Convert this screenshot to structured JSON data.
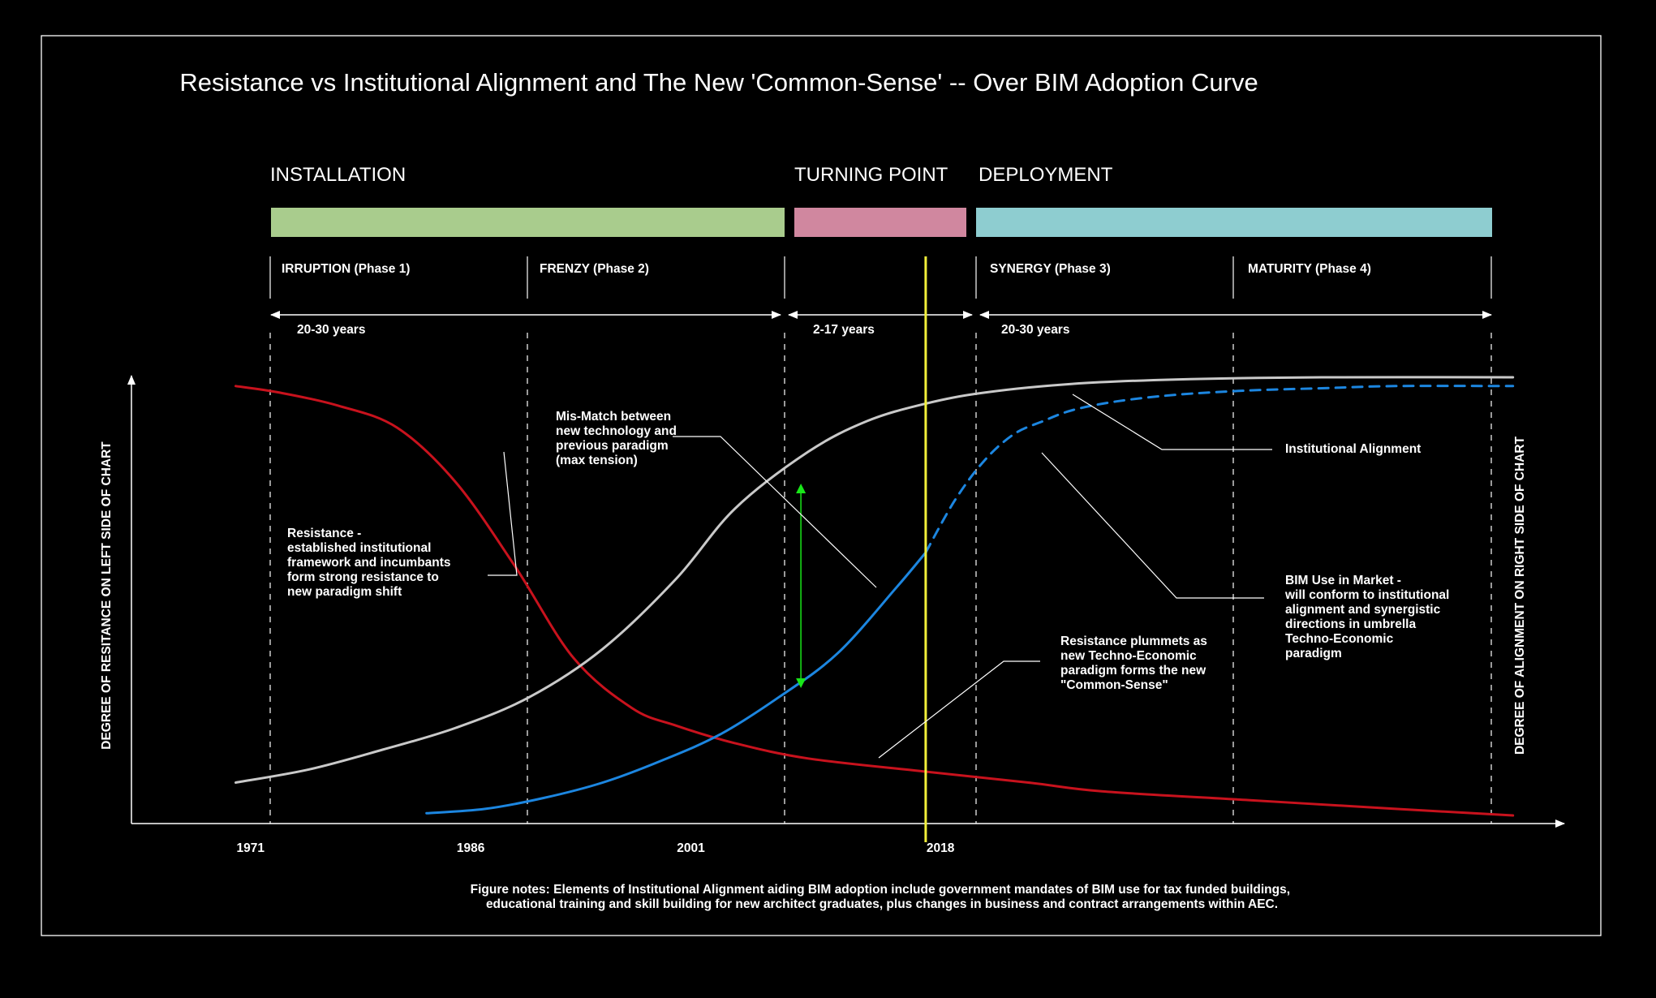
{
  "title": "Resistance vs Institutional Alignment and The New 'Common-Sense'  -- Over BIM Adoption Curve",
  "stages": [
    {
      "label": "INSTALLATION",
      "color": "#a9cc8d"
    },
    {
      "label": "TURNING POINT",
      "color": "#d0879f"
    },
    {
      "label": "DEPLOYMENT",
      "color": "#8ecdd0"
    }
  ],
  "phases": [
    "IRRUPTION (Phase 1)",
    "FRENZY (Phase 2)",
    "SYNERGY (Phase 3)",
    "MATURITY (Phase 4)"
  ],
  "durations": [
    "20-30 years",
    "2-17 years",
    "20-30 years"
  ],
  "y_axis_left": "DEGREE OF RESITANCE ON LEFT SIDE OF CHART",
  "y_axis_right": "DEGREE OF ALIGNMENT ON RIGHT SIDE OF CHART",
  "annotations": {
    "resistance": [
      "Resistance -",
      "established institutional",
      "framework and incumbants",
      "form strong resistance to",
      "new paradigm shift"
    ],
    "mismatch": [
      "Mis-Match between",
      "new technology and",
      "previous paradigm",
      "(max tension)"
    ],
    "institutional": [
      "Institutional Alignment"
    ],
    "bim_use": [
      "BIM Use in Market -",
      "will conform to institutional",
      "alignment and synergistic",
      "directions in umbrella",
      "Techno-Economic",
      "paradigm"
    ],
    "plummets": [
      "Resistance plummets as",
      "new Techno-Economic",
      "paradigm forms the new",
      "\"Common-Sense\""
    ]
  },
  "figure_notes": [
    "Figure notes:  Elements of Institutional Alignment aiding BIM adoption include government mandates of BIM use for tax funded buildings,",
    "educational training and skill building for new architect graduates, plus changes in business and contract arrangements within AEC."
  ],
  "chart_data": {
    "type": "line",
    "title": "Resistance vs Institutional Alignment and The New 'Common-Sense'  -- Over BIM Adoption Curve",
    "xlabel": "",
    "ylabel": "DEGREE OF RESITANCE ON LEFT SIDE OF CHART",
    "ylabel_right": "DEGREE OF ALIGNMENT ON RIGHT SIDE OF CHART",
    "x_ticks": [
      "1971",
      "1986",
      "2001",
      "2018"
    ],
    "x_tick_years": [
      1971,
      1986,
      2001,
      2018
    ],
    "xlim": [
      1963.9,
      2061.5
    ],
    "ylim": [
      0,
      100
    ],
    "grid": false,
    "highlight_year": 2018,
    "highlight_color": "#f2f03a",
    "series": [
      {
        "name": "Resistance",
        "color": "#c8121d",
        "style": "solid",
        "x": [
          1971,
          1974,
          1978,
          1982,
          1986,
          1990,
          1994,
          1998,
          2001,
          2005,
          2010,
          2018,
          2025,
          2030,
          2040,
          2050,
          2058
        ],
        "y": [
          98,
          96.5,
          93.5,
          88.5,
          76,
          57,
          36,
          24.5,
          20.5,
          16.5,
          13,
          10,
          7.5,
          5.5,
          3.5,
          1.5,
          0
        ]
      },
      {
        "name": "Institutional Alignment",
        "color": "#c9c9c9",
        "style": "solid",
        "x": [
          1971,
          1976,
          1981,
          1986,
          1991,
          1996,
          2001,
          2005,
          2010,
          2014,
          2018,
          2022,
          2028,
          2035,
          2045,
          2058
        ],
        "y": [
          7.5,
          10.5,
          15,
          20,
          27,
          38,
          54,
          70,
          83,
          90,
          94,
          96.5,
          98.5,
          99.5,
          100,
          100
        ]
      },
      {
        "name": "BIM Use in Market",
        "color": "#1c86e0",
        "style": "solid",
        "x": [
          1984,
          1988,
          1992,
          1996,
          2000,
          2004,
          2008,
          2012,
          2016,
          2018
        ],
        "y": [
          0.5,
          1.5,
          4,
          7.5,
          12.5,
          18.5,
          27,
          37,
          52,
          60
        ]
      },
      {
        "name": "BIM Use in Market (projected)",
        "color": "#1c86e0",
        "style": "dashed",
        "x": [
          2018,
          2020,
          2022,
          2024,
          2026,
          2028,
          2031,
          2035,
          2040,
          2045,
          2050,
          2058
        ],
        "y": [
          60,
          72,
          81,
          87,
          90,
          92.5,
          94.5,
          96,
          97,
          97.5,
          98,
          98
        ]
      }
    ]
  }
}
